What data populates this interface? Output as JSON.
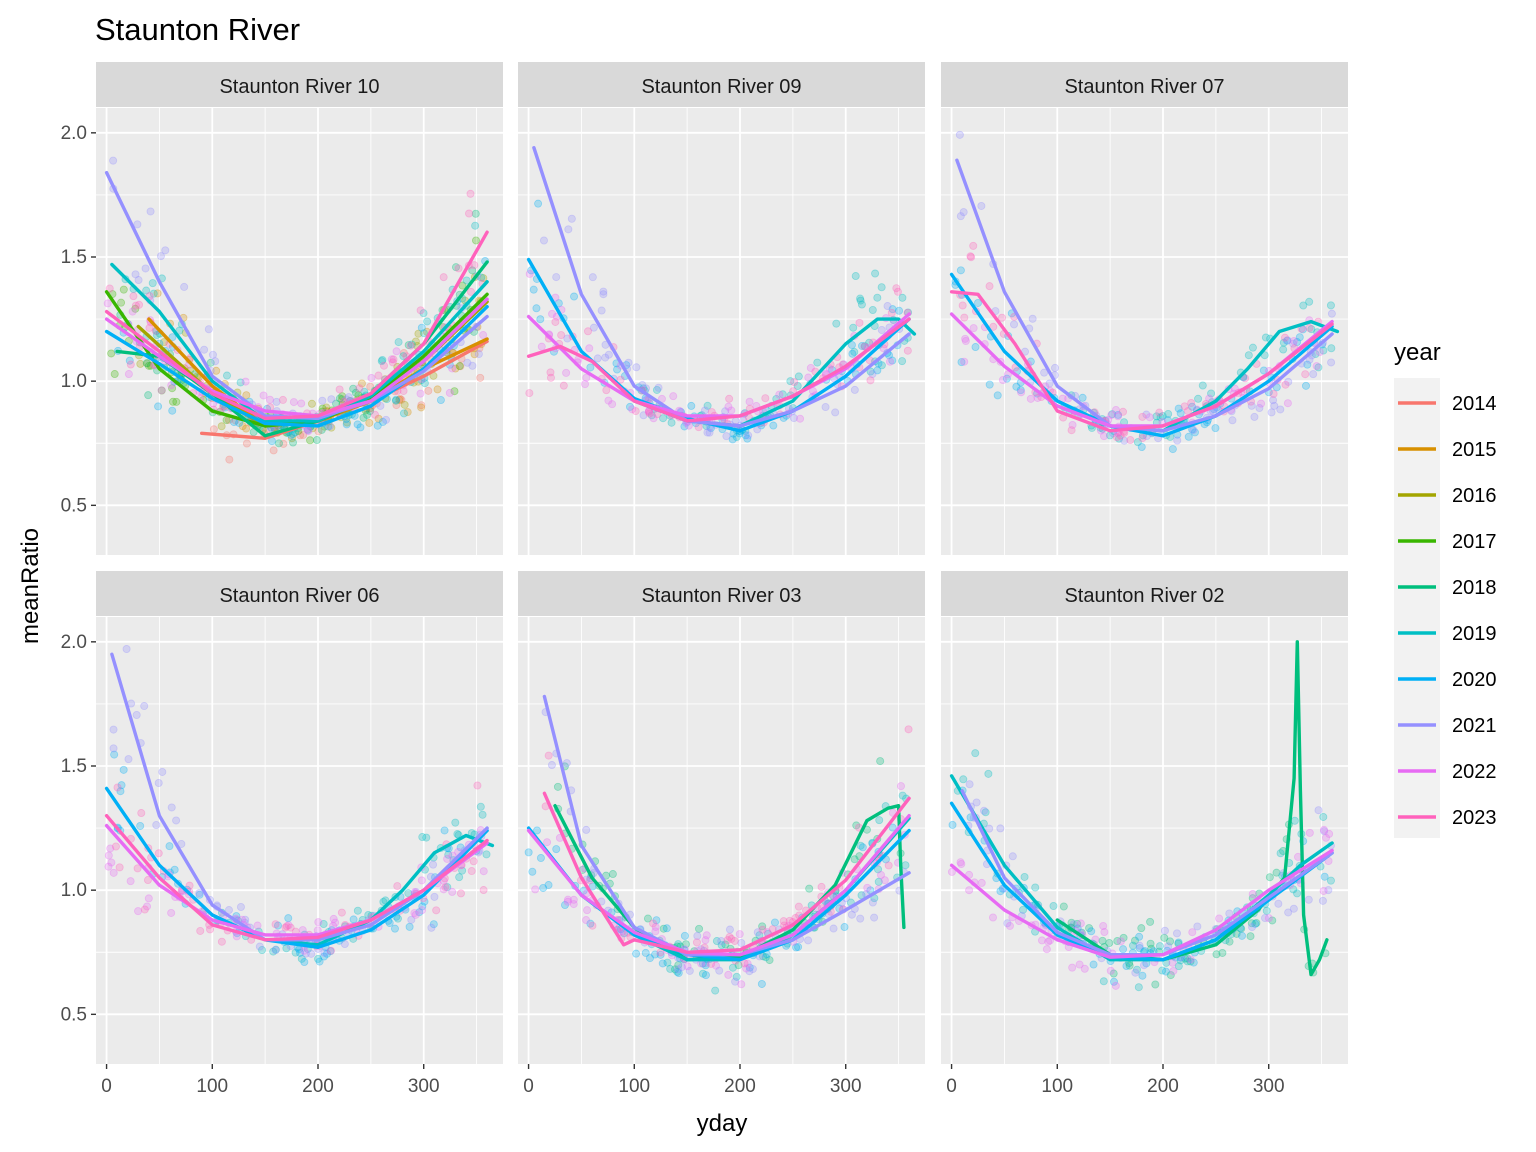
{
  "chart_data": {
    "type": "scatter",
    "title": "Staunton River",
    "xlabel": "yday",
    "ylabel": "meanRatio",
    "xlim": [
      -10,
      375
    ],
    "ylim": [
      0.3,
      2.1
    ],
    "x_ticks": [
      0,
      100,
      200,
      300
    ],
    "y_ticks": [
      0.5,
      1.0,
      1.5,
      2.0
    ],
    "y_tick_labels": [
      "0.5",
      "1.0",
      "1.5",
      "2.0"
    ],
    "grid": true,
    "legend": {
      "title": "year",
      "position": "right",
      "entries": [
        {
          "name": "2014",
          "color": "#F8766D"
        },
        {
          "name": "2015",
          "color": "#D89000"
        },
        {
          "name": "2016",
          "color": "#A3A500"
        },
        {
          "name": "2017",
          "color": "#39B600"
        },
        {
          "name": "2018",
          "color": "#00BF7D"
        },
        {
          "name": "2019",
          "color": "#00BFC4"
        },
        {
          "name": "2020",
          "color": "#00B0F6"
        },
        {
          "name": "2021",
          "color": "#9590FF"
        },
        {
          "name": "2022",
          "color": "#E76BF3"
        },
        {
          "name": "2023",
          "color": "#FF62BC"
        }
      ]
    },
    "panels": [
      {
        "label": "Staunton River 10",
        "smooth_lines": [
          {
            "year": "2014",
            "x": [
              90,
              150,
              200,
              250,
              300,
              360
            ],
            "y": [
              0.79,
              0.77,
              0.84,
              0.92,
              1.02,
              1.16
            ]
          },
          {
            "year": "2015",
            "x": [
              40,
              100,
              150,
              200,
              250,
              300,
              360
            ],
            "y": [
              1.25,
              0.98,
              0.82,
              0.84,
              0.92,
              1.05,
              1.17
            ]
          },
          {
            "year": "2016",
            "x": [
              30,
              100,
              150,
              200,
              250,
              300,
              360
            ],
            "y": [
              1.22,
              0.95,
              0.82,
              0.84,
              0.93,
              1.08,
              1.32
            ]
          },
          {
            "year": "2017",
            "x": [
              0,
              50,
              100,
              150,
              200,
              250,
              300,
              360
            ],
            "y": [
              1.36,
              1.05,
              0.88,
              0.82,
              0.84,
              0.93,
              1.1,
              1.35
            ]
          },
          {
            "year": "2018",
            "x": [
              10,
              50,
              100,
              150,
              200,
              250,
              300,
              360
            ],
            "y": [
              1.12,
              1.1,
              0.95,
              0.78,
              0.84,
              0.95,
              1.15,
              1.48
            ]
          },
          {
            "year": "2019",
            "x": [
              5,
              50,
              100,
              150,
              200,
              250,
              300,
              360
            ],
            "y": [
              1.47,
              1.28,
              1.0,
              0.84,
              0.84,
              0.94,
              1.12,
              1.4
            ]
          },
          {
            "year": "2020",
            "x": [
              0,
              50,
              100,
              150,
              200,
              250,
              300,
              360
            ],
            "y": [
              1.2,
              1.07,
              0.93,
              0.83,
              0.82,
              0.9,
              1.05,
              1.3
            ]
          },
          {
            "year": "2021",
            "x": [
              0,
              50,
              100,
              150,
              200,
              250,
              300,
              360
            ],
            "y": [
              1.84,
              1.4,
              1.02,
              0.86,
              0.85,
              0.92,
              1.04,
              1.26
            ]
          },
          {
            "year": "2022",
            "x": [
              0,
              50,
              100,
              150,
              200,
              250,
              300,
              360
            ],
            "y": [
              1.25,
              1.1,
              0.96,
              0.88,
              0.86,
              0.92,
              1.08,
              1.33
            ]
          },
          {
            "year": "2023",
            "x": [
              0,
              50,
              100,
              150,
              200,
              250,
              300,
              360
            ],
            "y": [
              1.28,
              1.12,
              0.95,
              0.85,
              0.86,
              0.95,
              1.15,
              1.6
            ]
          }
        ]
      },
      {
        "label": "Staunton River 09",
        "smooth_lines": [
          {
            "year": "2019",
            "x": [
              100,
              150,
              200,
              250,
              300,
              330,
              350,
              365
            ],
            "y": [
              0.92,
              0.84,
              0.82,
              0.92,
              1.15,
              1.25,
              1.25,
              1.19
            ]
          },
          {
            "year": "2020",
            "x": [
              0,
              50,
              100,
              150,
              200,
              250,
              300,
              360
            ],
            "y": [
              1.49,
              1.12,
              0.93,
              0.85,
              0.8,
              0.88,
              1.02,
              1.25
            ]
          },
          {
            "year": "2021",
            "x": [
              5,
              50,
              100,
              150,
              200,
              250,
              300,
              360
            ],
            "y": [
              1.94,
              1.35,
              0.98,
              0.84,
              0.82,
              0.88,
              0.98,
              1.19
            ]
          },
          {
            "year": "2022",
            "x": [
              0,
              50,
              100,
              150,
              200,
              250,
              300,
              360
            ],
            "y": [
              1.26,
              1.05,
              0.92,
              0.86,
              0.86,
              0.94,
              1.05,
              1.27
            ]
          },
          {
            "year": "2023",
            "x": [
              0,
              30,
              60,
              100,
              150,
              200,
              250,
              300,
              360
            ],
            "y": [
              1.1,
              1.14,
              1.08,
              0.92,
              0.84,
              0.86,
              0.94,
              1.06,
              1.25
            ]
          }
        ]
      },
      {
        "label": "Staunton River 07",
        "smooth_lines": [
          {
            "year": "2019",
            "x": [
              100,
              150,
              200,
              250,
              280,
              310,
              340,
              365
            ],
            "y": [
              0.92,
              0.82,
              0.8,
              0.92,
              1.05,
              1.2,
              1.24,
              1.2
            ]
          },
          {
            "year": "2020",
            "x": [
              0,
              50,
              100,
              150,
              200,
              250,
              300,
              360
            ],
            "y": [
              1.43,
              1.12,
              0.92,
              0.82,
              0.78,
              0.86,
              1.0,
              1.22
            ]
          },
          {
            "year": "2021",
            "x": [
              5,
              50,
              100,
              150,
              200,
              250,
              300,
              360
            ],
            "y": [
              1.89,
              1.36,
              0.98,
              0.82,
              0.8,
              0.86,
              0.97,
              1.19
            ]
          },
          {
            "year": "2022",
            "x": [
              0,
              50,
              100,
              150,
              200,
              250,
              300,
              360
            ],
            "y": [
              1.27,
              1.06,
              0.9,
              0.82,
              0.82,
              0.9,
              1.03,
              1.24
            ]
          },
          {
            "year": "2023",
            "x": [
              0,
              25,
              60,
              100,
              150,
              200,
              250,
              300,
              360
            ],
            "y": [
              1.36,
              1.35,
              1.15,
              0.88,
              0.8,
              0.82,
              0.9,
              1.03,
              1.23
            ]
          }
        ]
      },
      {
        "label": "Staunton River 06",
        "smooth_lines": [
          {
            "year": "2019",
            "x": [
              100,
              150,
              200,
              250,
              280,
              310,
              340,
              365
            ],
            "y": [
              0.9,
              0.8,
              0.78,
              0.88,
              1.0,
              1.15,
              1.22,
              1.18
            ]
          },
          {
            "year": "2020",
            "x": [
              0,
              50,
              100,
              150,
              200,
              250,
              300,
              360
            ],
            "y": [
              1.41,
              1.1,
              0.9,
              0.8,
              0.77,
              0.84,
              0.98,
              1.24
            ]
          },
          {
            "year": "2021",
            "x": [
              5,
              50,
              100,
              150,
              200,
              250,
              300,
              360
            ],
            "y": [
              1.95,
              1.3,
              0.94,
              0.8,
              0.8,
              0.86,
              1.0,
              1.25
            ]
          },
          {
            "year": "2022",
            "x": [
              0,
              50,
              100,
              150,
              200,
              250,
              300,
              360
            ],
            "y": [
              1.26,
              1.02,
              0.88,
              0.82,
              0.82,
              0.88,
              1.0,
              1.19
            ]
          },
          {
            "year": "2023",
            "x": [
              0,
              50,
              100,
              150,
              200,
              250,
              300,
              360
            ],
            "y": [
              1.3,
              1.05,
              0.86,
              0.8,
              0.81,
              0.88,
              1.0,
              1.2
            ]
          }
        ]
      },
      {
        "label": "Staunton River 03",
        "smooth_lines": [
          {
            "year": "2018",
            "x": [
              25,
              60,
              100,
              150,
              200,
              250,
              290,
              320,
              340,
              350,
              352,
              355
            ],
            "y": [
              1.34,
              1.05,
              0.85,
              0.72,
              0.73,
              0.84,
              1.02,
              1.28,
              1.33,
              1.34,
              1.1,
              0.85
            ]
          },
          {
            "year": "2019",
            "x": [
              100,
              150,
              200,
              250,
              300,
              360
            ],
            "y": [
              0.82,
              0.72,
              0.72,
              0.82,
              1.0,
              1.29
            ]
          },
          {
            "year": "2020",
            "x": [
              0,
              50,
              100,
              150,
              200,
              250,
              300,
              360
            ],
            "y": [
              1.25,
              0.98,
              0.82,
              0.74,
              0.72,
              0.8,
              0.98,
              1.24
            ]
          },
          {
            "year": "2021",
            "x": [
              15,
              50,
              100,
              150,
              200,
              250,
              300,
              360
            ],
            "y": [
              1.78,
              1.18,
              0.85,
              0.74,
              0.74,
              0.8,
              0.92,
              1.07
            ]
          },
          {
            "year": "2022",
            "x": [
              0,
              50,
              100,
              150,
              200,
              250,
              300,
              360
            ],
            "y": [
              1.24,
              0.98,
              0.83,
              0.75,
              0.74,
              0.82,
              1.0,
              1.3
            ]
          },
          {
            "year": "2023",
            "x": [
              15,
              50,
              90,
              100,
              150,
              200,
              250,
              300,
              360
            ],
            "y": [
              1.39,
              1.05,
              0.78,
              0.8,
              0.75,
              0.76,
              0.86,
              1.04,
              1.37
            ]
          }
        ]
      },
      {
        "label": "Staunton River 02",
        "smooth_lines": [
          {
            "year": "2018",
            "x": [
              100,
              150,
              200,
              250,
              290,
              315,
              324,
              327,
              330,
              333,
              340,
              348,
              355
            ],
            "y": [
              0.88,
              0.74,
              0.72,
              0.78,
              0.92,
              1.05,
              1.45,
              2.0,
              1.4,
              0.9,
              0.66,
              0.72,
              0.8
            ]
          },
          {
            "year": "2019",
            "x": [
              0,
              50,
              100,
              150,
              200,
              250,
              300,
              330,
              360
            ],
            "y": [
              1.46,
              1.1,
              0.85,
              0.72,
              0.72,
              0.8,
              0.98,
              1.1,
              1.19
            ]
          },
          {
            "year": "2020",
            "x": [
              0,
              50,
              100,
              150,
              200,
              250,
              300,
              360
            ],
            "y": [
              1.35,
              1.02,
              0.82,
              0.73,
              0.72,
              0.8,
              0.96,
              1.15
            ]
          },
          {
            "year": "2021",
            "x": [
              10,
              50,
              100,
              150,
              200,
              250,
              300,
              360
            ],
            "y": [
              1.4,
              1.05,
              0.83,
              0.74,
              0.74,
              0.82,
              0.97,
              1.15
            ]
          },
          {
            "year": "2022",
            "x": [
              0,
              50,
              100,
              150,
              200,
              250,
              300,
              360
            ],
            "y": [
              1.1,
              0.92,
              0.8,
              0.73,
              0.74,
              0.84,
              1.0,
              1.16
            ]
          }
        ]
      }
    ]
  }
}
